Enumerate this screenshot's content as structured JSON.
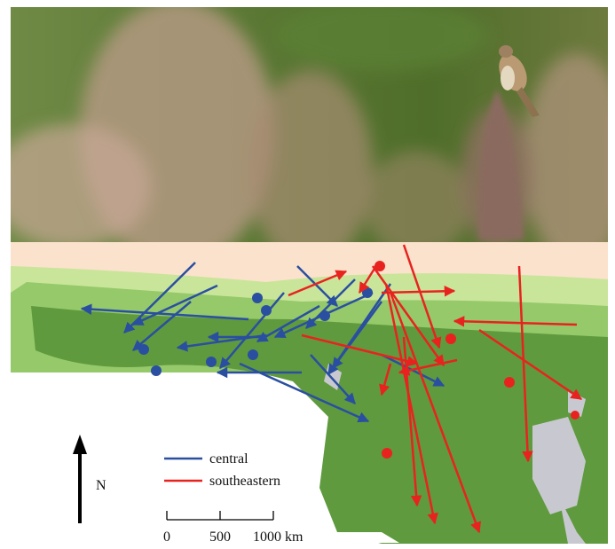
{
  "legend": {
    "items": [
      {
        "label": "central"
      },
      {
        "label": "southeastern"
      }
    ]
  },
  "north_label": "N",
  "scale_bar": {
    "labels": [
      "0",
      "500",
      "1000 km"
    ]
  }
}
